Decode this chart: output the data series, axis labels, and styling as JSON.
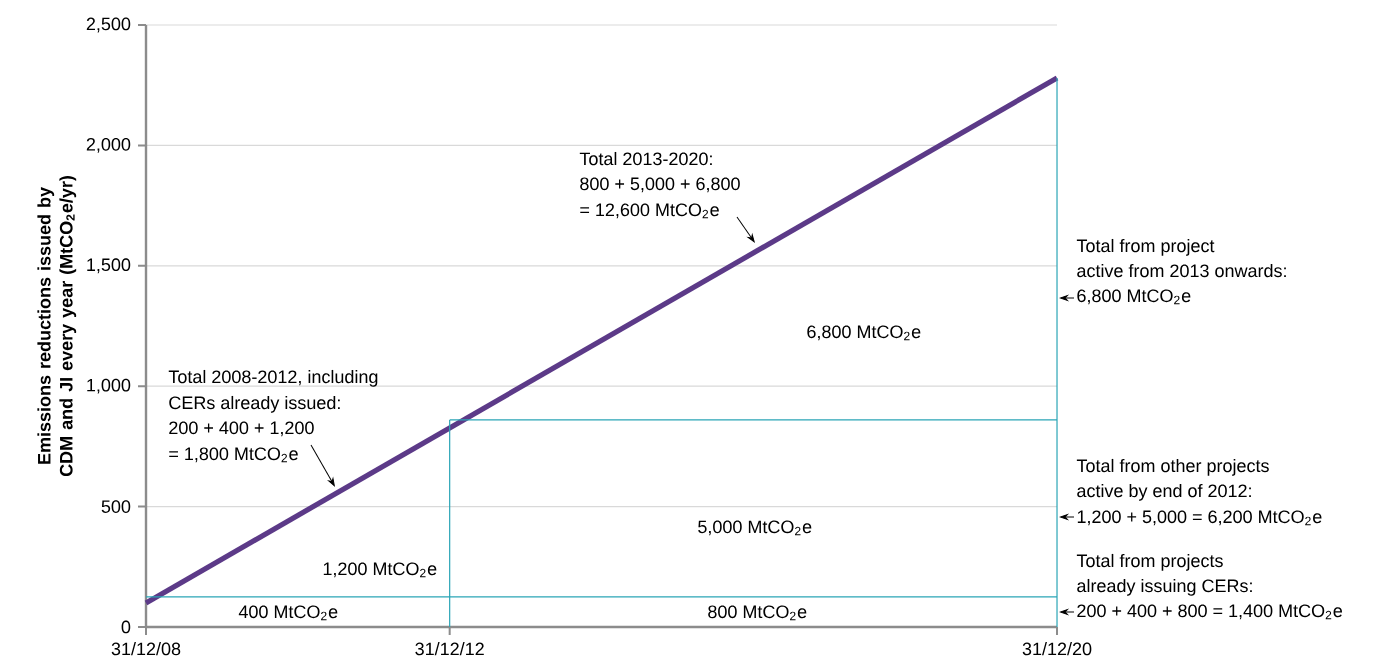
{
  "chart_data": {
    "type": "line",
    "ylabel": "Emissions reductions issued by CDM and JI every year (MtCO$_{2}$e/yr)",
    "xlim": [
      "2008-12-31",
      "2020-12-31"
    ],
    "xticks": [
      {
        "value": "2008-12-31",
        "label": "31/12/08"
      },
      {
        "value": "2012-12-31",
        "label": "31/12/12"
      },
      {
        "value": "2020-12-31",
        "label": "31/12/20"
      }
    ],
    "ylim": [
      0,
      2500
    ],
    "yticks": [
      0,
      500,
      {
        "value": 1000,
        "label": "1,000"
      },
      {
        "value": 1500,
        "label": "1,500"
      },
      {
        "value": 2000,
        "label": "2,000"
      },
      {
        "value": 2500,
        "label": "2,500"
      }
    ],
    "grid": "y",
    "series": [
      {
        "color": "#5c3a88",
        "x": [
          "2008-12-31",
          "2020-12-31"
        ],
        "values": [
          100,
          2280
        ]
      },
      {
        "color": "#2aa5b6",
        "x": [
          "2008-12-31",
          "2020-12-31"
        ],
        "values": [
          125,
          125
        ]
      },
      {
        "color": "#2aa5b6",
        "x": [
          "2012-12-31",
          "2020-12-31"
        ],
        "values": [
          860,
          860
        ]
      },
      {
        "color": "#2aa5b6",
        "x": [
          "2012-12-31",
          "2012-12-31"
        ],
        "values": [
          0,
          860
        ]
      },
      {
        "color": "#2aa5b6",
        "x": [
          "2020-12-31",
          "2020-12-31"
        ],
        "values": [
          0,
          2280
        ]
      }
    ],
    "annotations": [
      "Total 2013-2020:",
      "800 + 5,000 + 6,800",
      "= 12,600 MtCO$_{2}$e",
      "Total 2008-2012, including",
      "CERs already issued:",
      "200 + 400 + 1,200",
      "= 1,800 MtCO$_{2}$e",
      "6,800 MtCO$_{2}$e",
      "5,000 MtCO$_{2}$e",
      "1,200 MtCO$_{2}$e",
      "400 MtCO$_{2}$e",
      "800 MtCO$_{2}$e",
      "Total from project",
      "active from 2013 onwards:",
      "6,800 MtCO$_{2}$e",
      "Total from other projects",
      "active by end of 2012:",
      "1,200 + 5,000 = 6,200 MtCO$_{2}$e",
      "Total from projects",
      "already issuing CERs:",
      "200 + 400 + 800 = 1,400 MtCO$_{2}$e"
    ]
  }
}
